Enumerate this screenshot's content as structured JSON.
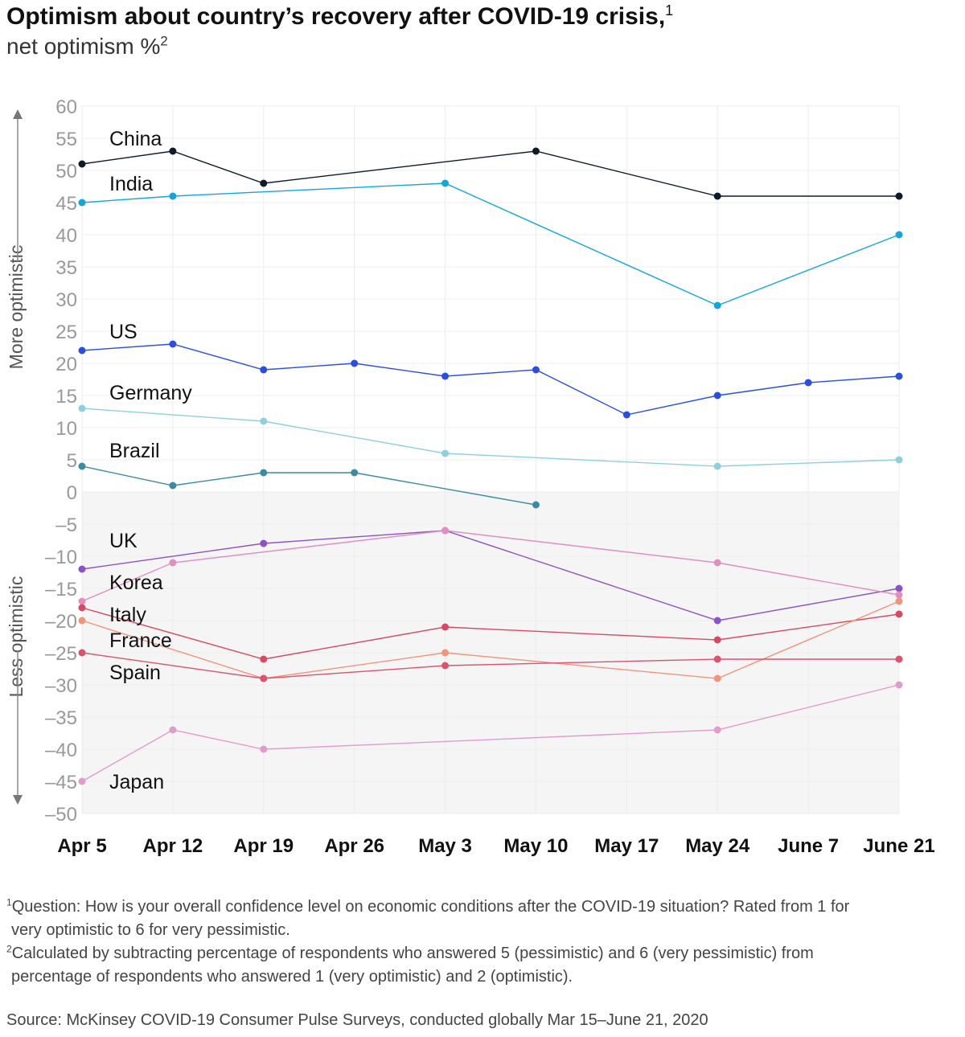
{
  "title": "Optimism about country’s recovery after COVID-19 crisis,",
  "title_sup": "1",
  "subtitle": "net optimism %",
  "subtitle_sup": "2",
  "chart_data": {
    "type": "line",
    "title": "Optimism about country’s recovery after COVID-19 crisis",
    "ylabel": "net optimism %",
    "ylabel_upper": "More optimistic",
    "ylabel_lower": "Less optimistic",
    "ylim": [
      -50,
      60
    ],
    "yticks": [
      60,
      55,
      50,
      45,
      40,
      35,
      30,
      25,
      20,
      15,
      10,
      5,
      0,
      -5,
      -10,
      -15,
      -20,
      -25,
      -30,
      -35,
      -40,
      -45,
      -50
    ],
    "ytick_labels": [
      "60",
      "55",
      "50",
      "45",
      "40",
      "35",
      "30",
      "25",
      "20",
      "15",
      "10",
      "5",
      "0",
      "–5",
      "–10",
      "–15",
      "–20",
      "–25",
      "–30",
      "–35",
      "–40",
      "–45",
      "–50"
    ],
    "categories": [
      "Apr 5",
      "Apr 12",
      "Apr 19",
      "Apr 26",
      "May 3",
      "May 10",
      "May 17",
      "May 24",
      "June 7",
      "June 21"
    ],
    "series": [
      {
        "name": "China",
        "color": "#0d1b2a",
        "label_y": 55,
        "values": [
          51,
          53,
          48,
          null,
          null,
          53,
          null,
          46,
          null,
          46
        ]
      },
      {
        "name": "India",
        "color": "#12a6de",
        "label_y": 48,
        "values": [
          45,
          46,
          null,
          null,
          48,
          null,
          null,
          29,
          null,
          40
        ]
      },
      {
        "name": "US",
        "color": "#2a4fe0",
        "label_y": 25,
        "values": [
          22,
          23,
          19,
          20,
          18,
          19,
          12,
          15,
          17,
          18
        ]
      },
      {
        "name": "Germany",
        "color": "#8fd0de",
        "label_y": 15.5,
        "values": [
          13,
          null,
          11,
          null,
          6,
          null,
          null,
          4,
          null,
          5
        ]
      },
      {
        "name": "Brazil",
        "color": "#3b8ba3",
        "label_y": 6.5,
        "values": [
          4,
          1,
          3,
          3,
          null,
          -2,
          null,
          null,
          null,
          null
        ]
      },
      {
        "name": "UK",
        "color": "#8a52c6",
        "label_y": -7.5,
        "values": [
          -12,
          null,
          -8,
          null,
          -6,
          null,
          null,
          -20,
          null,
          -15
        ]
      },
      {
        "name": "Korea",
        "color": "#e08fc0",
        "label_y": -14,
        "values": [
          -17,
          -11,
          null,
          null,
          -6,
          null,
          null,
          -11,
          null,
          -16
        ]
      },
      {
        "name": "Italy",
        "color": "#d84a63",
        "label_y": -19,
        "values": [
          -18,
          null,
          -26,
          null,
          -21,
          null,
          null,
          -23,
          null,
          -19
        ]
      },
      {
        "name": "France",
        "color": "#f0957a",
        "label_y": -23,
        "values": [
          -20,
          null,
          -29,
          null,
          -25,
          null,
          null,
          -29,
          null,
          -17
        ]
      },
      {
        "name": "Spain",
        "color": "#d9546c",
        "label_y": -28,
        "values": [
          -25,
          null,
          -29,
          null,
          -27,
          null,
          null,
          -26,
          null,
          -26
        ]
      },
      {
        "name": "Japan",
        "color": "#e09ccc",
        "label_y": -45,
        "values": [
          -45,
          -37,
          -40,
          null,
          null,
          null,
          null,
          -37,
          null,
          -30
        ]
      }
    ],
    "shading": "negative region shaded light gray",
    "grid": true
  },
  "footnotes": {
    "note1_sup": "1",
    "note1_line1": "Question: How is your overall confidence level on economic conditions after the COVID-19 situation? Rated from 1 for",
    "note1_line2": "very optimistic to 6 for very pessimistic.",
    "note2_sup": "2",
    "note2_line1": "Calculated by subtracting percentage of respondents who answered 5 (pessimistic) and 6 (very pessimistic) from",
    "note2_line2": "percentage of respondents who answered 1 (very optimistic) and 2 (optimistic)."
  },
  "source": "Source: McKinsey COVID-19 Consumer Pulse Surveys, conducted globally Mar 15–June 21, 2020"
}
